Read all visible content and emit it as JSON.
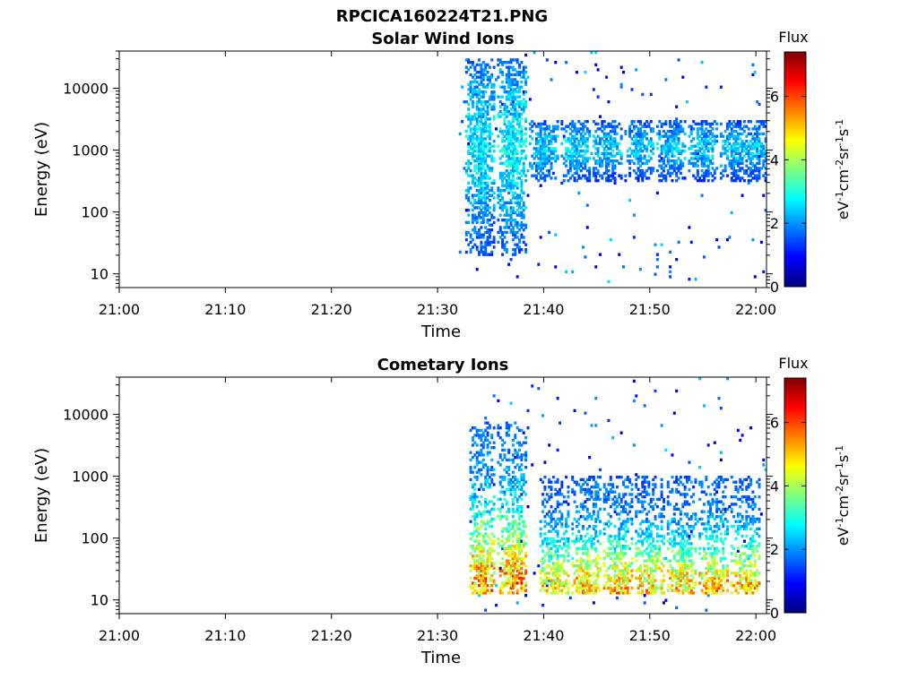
{
  "figure_title": "RPCICA160224T21.PNG",
  "colors": {
    "colormap": [
      "#00007f",
      "#0000ff",
      "#007fff",
      "#00ffff",
      "#7fff7f",
      "#ffff00",
      "#ff7f00",
      "#ff0000",
      "#7f0000"
    ]
  },
  "chart_data": [
    {
      "type": "heatmap",
      "title": "Solar Wind Ions",
      "xlabel": "Time",
      "ylabel": "Energy (eV)",
      "xticks": [
        "21:00",
        "21:10",
        "21:20",
        "21:30",
        "21:40",
        "21:50",
        "22:00"
      ],
      "xlim": [
        "21:00",
        "22:01"
      ],
      "yscale": "log",
      "ylim": [
        6,
        40000
      ],
      "yticks": [
        "10",
        "100",
        "1000",
        "10000"
      ],
      "colorbar": {
        "label_top": "Flux",
        "label_units": "eV-1cm-2sr-1s-1",
        "range": [
          0,
          7.4
        ],
        "ticks": [
          "0",
          "2",
          "4",
          "6"
        ]
      },
      "data_coverage": {
        "start": "21:32",
        "end": "22:01"
      },
      "clusters": [
        {
          "time": "21:34",
          "energy": [
            20,
            30000
          ],
          "flux": 2.6
        },
        {
          "time": "21:37",
          "energy": [
            20,
            30000
          ],
          "flux": 2.7
        },
        {
          "time": "21:40",
          "energy": [
            300,
            3000
          ],
          "flux": 2.4
        },
        {
          "time": "21:43",
          "energy": [
            300,
            3000
          ],
          "flux": 2.4
        },
        {
          "time": "21:46",
          "energy": [
            300,
            3000
          ],
          "flux": 2.3
        },
        {
          "time": "21:49",
          "energy": [
            300,
            3000
          ],
          "flux": 2.3
        },
        {
          "time": "21:52",
          "energy": [
            300,
            3000
          ],
          "flux": 2.3
        },
        {
          "time": "21:55",
          "energy": [
            300,
            3000
          ],
          "flux": 2.3
        },
        {
          "time": "21:58",
          "energy": [
            300,
            3000
          ],
          "flux": 2.3
        },
        {
          "time": "22:00",
          "energy": [
            300,
            3000
          ],
          "flux": 2.3
        }
      ]
    },
    {
      "type": "heatmap",
      "title": "Cometary Ions",
      "xlabel": "Time",
      "ylabel": "Energy (eV)",
      "xticks": [
        "21:00",
        "21:10",
        "21:20",
        "21:30",
        "21:40",
        "21:50",
        "22:00"
      ],
      "xlim": [
        "21:00",
        "22:01"
      ],
      "yscale": "log",
      "ylim": [
        6,
        40000
      ],
      "yticks": [
        "10",
        "100",
        "1000",
        "10000"
      ],
      "colorbar": {
        "label_top": "Flux",
        "label_units": "eV-1cm-2sr-1s-1",
        "range": [
          0,
          7.4
        ],
        "ticks": [
          "0",
          "2",
          "4",
          "6"
        ]
      },
      "data_coverage": {
        "start": "21:33",
        "end": "22:01"
      },
      "clusters": [
        {
          "time": "21:34",
          "energy": [
            12,
            8000
          ],
          "flux": 5.2
        },
        {
          "time": "21:37",
          "energy": [
            12,
            8000
          ],
          "flux": 5.3
        },
        {
          "time": "21:41",
          "energy": [
            12,
            1000
          ],
          "flux": 4.6
        },
        {
          "time": "21:44",
          "energy": [
            12,
            1000
          ],
          "flux": 5.0
        },
        {
          "time": "21:47",
          "energy": [
            12,
            1000
          ],
          "flux": 5.0
        },
        {
          "time": "21:50",
          "energy": [
            12,
            1000
          ],
          "flux": 4.9
        },
        {
          "time": "21:53",
          "energy": [
            12,
            1000
          ],
          "flux": 4.9
        },
        {
          "time": "21:56",
          "energy": [
            12,
            1000
          ],
          "flux": 5.0
        },
        {
          "time": "21:59",
          "energy": [
            12,
            1000
          ],
          "flux": 4.9
        }
      ]
    }
  ]
}
